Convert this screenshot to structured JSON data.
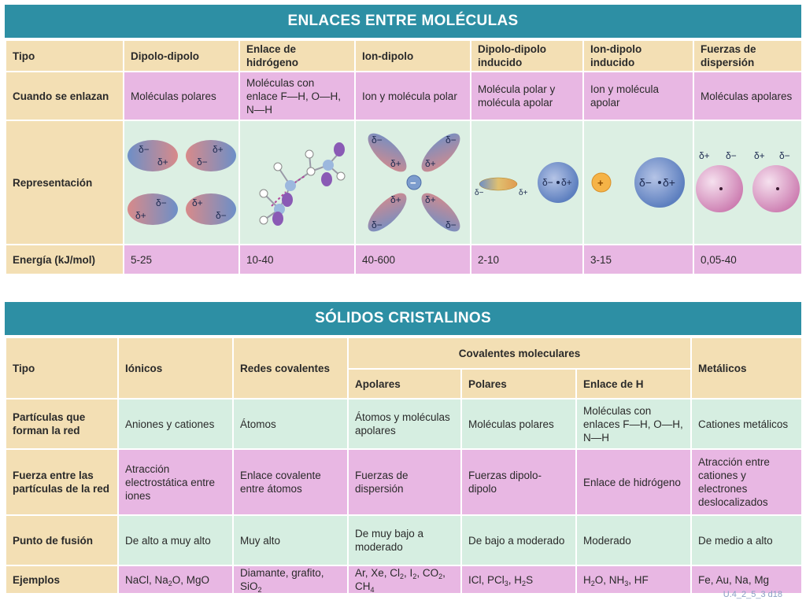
{
  "enlaces": {
    "title": "ENLACES ENTRE MOLÉCULAS",
    "row_labels": {
      "tipo": "Tipo",
      "cuando": "Cuando se enlazan",
      "representacion": "Representación",
      "energia": "Energía (kJ/mol)"
    },
    "columns": [
      {
        "tipo": "Dipolo-dipolo",
        "cuando": "Moléculas polares",
        "energia": "5-25"
      },
      {
        "tipo": "Enlace de hidrógeno",
        "cuando": "Moléculas con enlace F—H, O—H, N—H",
        "energia": "10-40"
      },
      {
        "tipo": "Ion-dipolo",
        "cuando": "Ion y molécula polar",
        "energia": "40-600"
      },
      {
        "tipo": "Dipolo-dipolo inducido",
        "cuando": "Molécula polar y molécula apolar",
        "energia": "2-10"
      },
      {
        "tipo": "Ion-dipolo inducido",
        "cuando": "Ion y molécula apolar",
        "energia": "3-15"
      },
      {
        "tipo": "Fuerzas de dispersión",
        "cuando": "Moléculas apolares",
        "energia": "0,05-40"
      }
    ],
    "symbols": {
      "delta_minus": "δ−",
      "delta_plus": "δ+",
      "plus": "+",
      "minus": "−"
    }
  },
  "solidos": {
    "title": "SÓLIDOS CRISTALINOS",
    "header": {
      "tipo": "Tipo",
      "ionicos": "Iónicos",
      "redes": "Redes covalentes",
      "covalentes_moleculares": "Covalentes moleculares",
      "apolares": "Apolares",
      "polares": "Polares",
      "enlace_h": "Enlace de H",
      "metalicos": "Metálicos"
    },
    "rows": [
      {
        "label": "Partículas que forman la red",
        "ionicos": "Aniones y cationes",
        "redes": "Átomos",
        "apolares": "Átomos y moléculas apolares",
        "polares": "Moléculas polares",
        "enlace_h": "Moléculas con enlaces F—H, O—H, N—H",
        "metalicos": "Cationes metálicos"
      },
      {
        "label": "Fuerza entre las partículas de la red",
        "ionicos": "Atracción electrostática entre iones",
        "redes": "Enlace covalente entre átomos",
        "apolares": "Fuerzas de dispersión",
        "polares": "Fuerzas dipolo-dipolo",
        "enlace_h": "Enlace de hidrógeno",
        "metalicos": "Atracción entre cationes y electrones deslocalizados"
      },
      {
        "label": "Punto de fusión",
        "ionicos": "De alto a muy alto",
        "redes": "Muy alto",
        "apolares": "De muy bajo a moderado",
        "polares": "De bajo a moderado",
        "enlace_h": "Moderado",
        "metalicos": "De medio a alto"
      }
    ],
    "ejemplos": {
      "label": "Ejemplos",
      "ionicos": [
        "NaCl, Na",
        "2",
        "O, MgO"
      ],
      "redes": [
        "Diamante, grafito, SiO",
        "2"
      ],
      "apolares": [
        "Ar, Xe, Cl",
        "2",
        ", I",
        "2",
        ", CO",
        "2",
        ", CH",
        "4"
      ],
      "polares": [
        "ICl, PCl",
        "3",
        ", H",
        "2",
        "S"
      ],
      "enlace_h": [
        "H",
        "2",
        "O, NH",
        "3",
        ", HF"
      ],
      "metalicos": [
        "Fe, Au, Na, Mg"
      ]
    }
  },
  "footer": "U.4_2_5_3 d18",
  "colors": {
    "banner": "#2d8fa4",
    "header_bg": "#f3dfb4",
    "pink": "#e8b7e3",
    "green": "#d6eee1"
  }
}
